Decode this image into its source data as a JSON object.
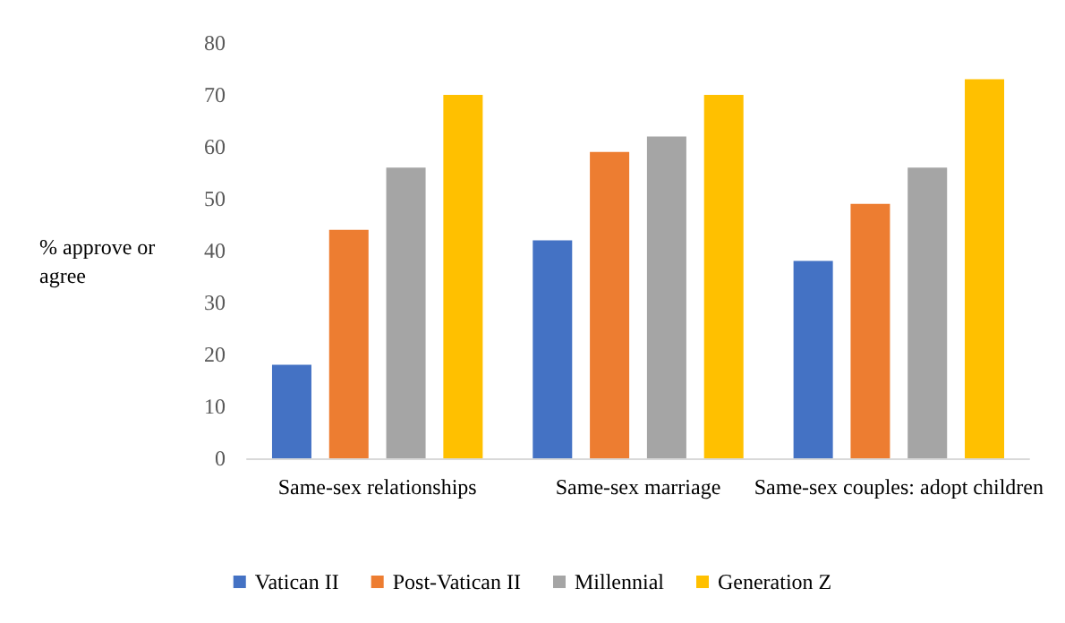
{
  "chart_data": {
    "type": "bar",
    "ylabel": "% approve or agree",
    "categories": [
      "Same-sex relationships",
      "Same-sex marriage",
      "Same-sex couples: adopt children"
    ],
    "series": [
      {
        "name": "Vatican II",
        "color": "#4472c4",
        "values": [
          18,
          42,
          38
        ]
      },
      {
        "name": "Post-Vatican II",
        "color": "#ed7d31",
        "values": [
          44,
          59,
          49
        ]
      },
      {
        "name": "Millennial",
        "color": "#a5a5a5",
        "values": [
          56,
          62,
          56
        ]
      },
      {
        "name": "Generation Z",
        "color": "#ffc000",
        "values": [
          70,
          70,
          73
        ]
      }
    ],
    "ylim": [
      0,
      80
    ],
    "yticks": [
      0,
      10,
      20,
      30,
      40,
      50,
      60,
      70,
      80
    ],
    "grid": false,
    "legend": "bottom"
  }
}
